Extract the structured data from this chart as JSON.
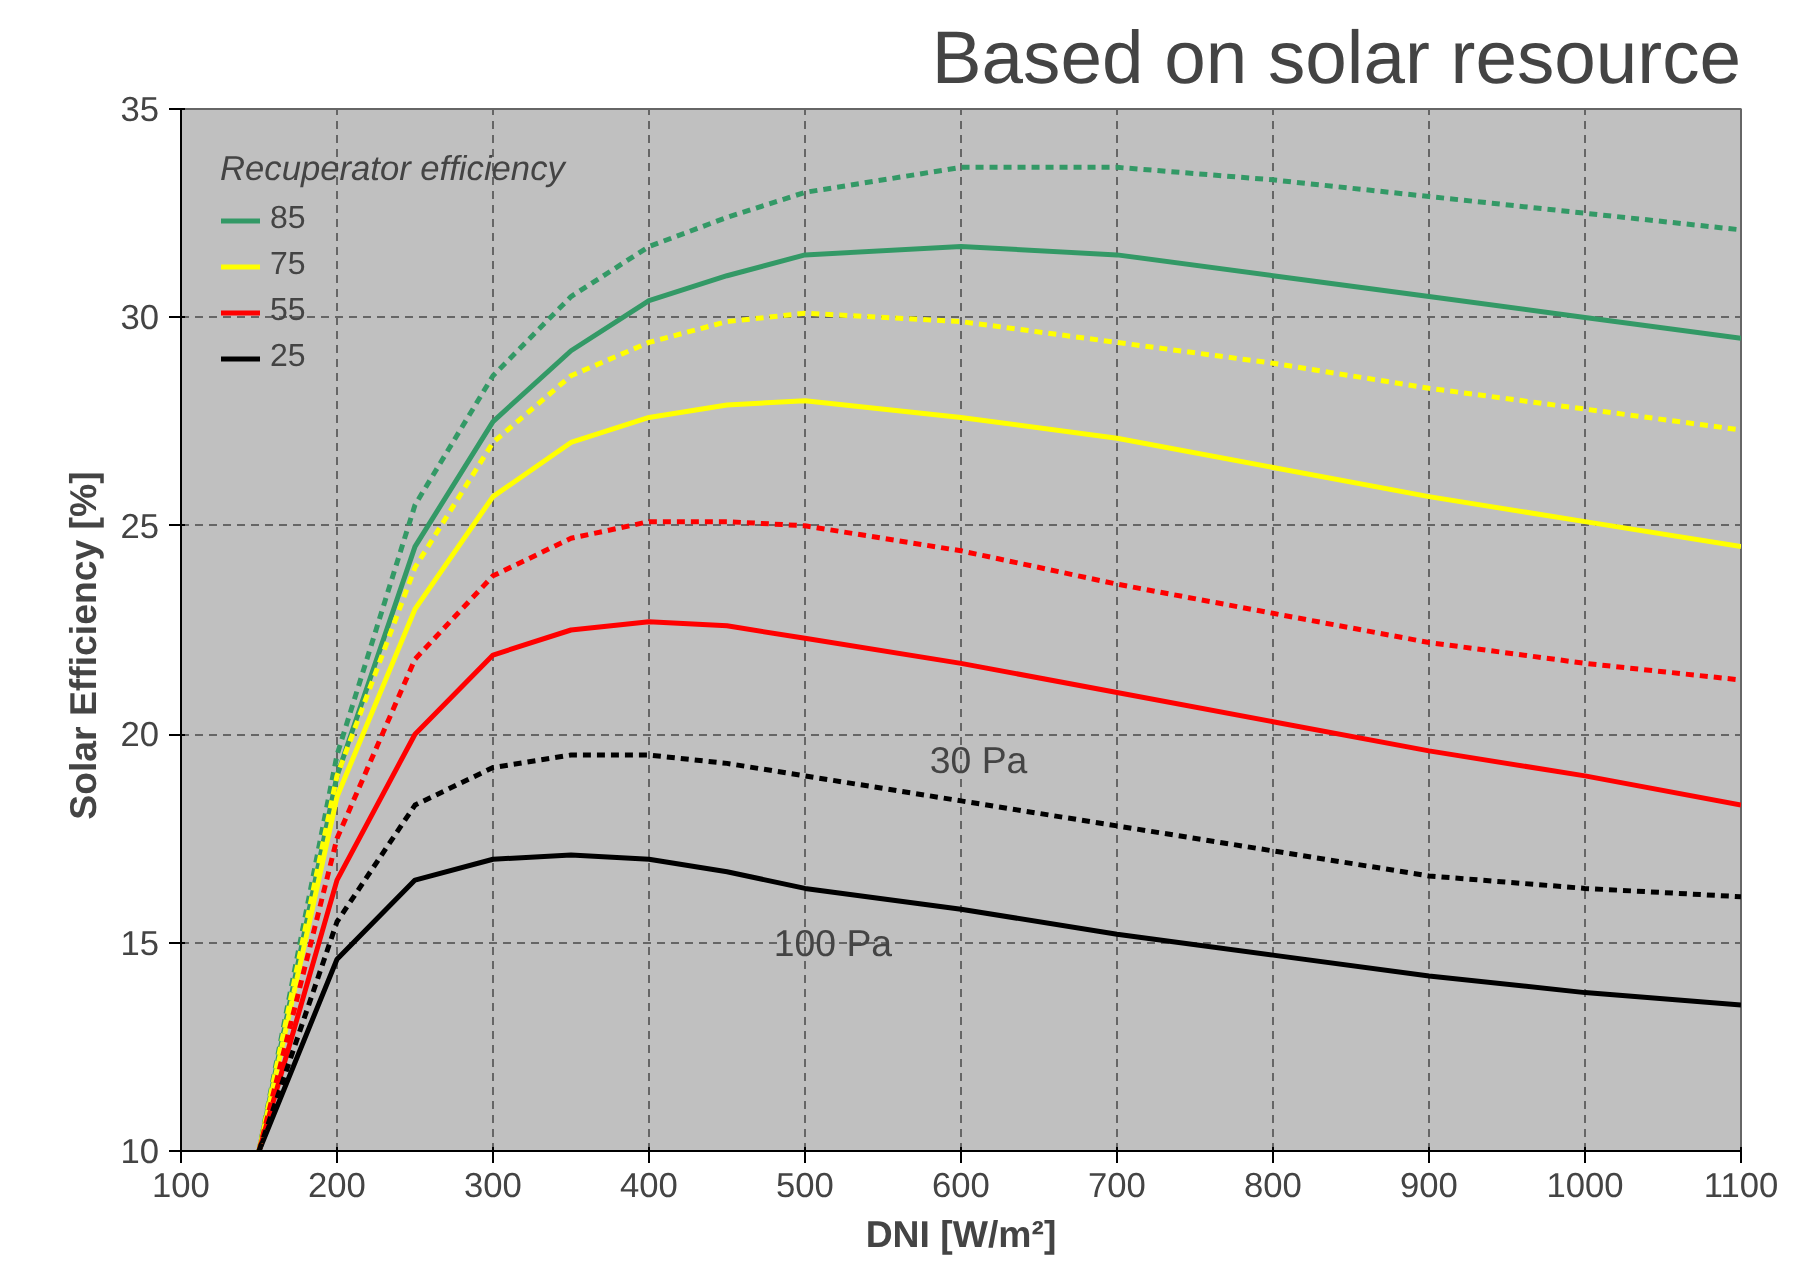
{
  "chart_data": {
    "type": "line",
    "title": "Based on solar resource",
    "legend_title": "Recuperator efficiency",
    "xlabel": "DNI [W/m²]",
    "ylabel": "Solar Efficiency    [%]",
    "x": [
      150,
      200,
      250,
      300,
      350,
      400,
      450,
      500,
      600,
      700,
      800,
      900,
      1000,
      1100
    ],
    "series": [
      {
        "name": "85",
        "color": "#339966",
        "line_style": "solid",
        "values": [
          10,
          19,
          24.5,
          27.5,
          29.2,
          30.4,
          31.0,
          31.5,
          31.7,
          31.5,
          31.0,
          30.5,
          30.0,
          29.5
        ]
      },
      {
        "name": "75",
        "color": "#ffff00",
        "line_style": "solid",
        "values": [
          10,
          18.5,
          23,
          25.7,
          27,
          27.6,
          27.9,
          28.0,
          27.6,
          27.1,
          26.4,
          25.7,
          25.1,
          24.5
        ]
      },
      {
        "name": "55",
        "color": "#ff0000",
        "line_style": "solid",
        "values": [
          10,
          16.5,
          20,
          21.9,
          22.5,
          22.7,
          22.6,
          22.3,
          21.7,
          21.0,
          20.3,
          19.6,
          19.0,
          18.3
        ]
      },
      {
        "name": "25",
        "color": "#000000",
        "line_style": "solid",
        "values": [
          10,
          14.6,
          16.5,
          17.0,
          17.1,
          17.0,
          16.7,
          16.3,
          15.8,
          15.2,
          14.7,
          14.2,
          13.8,
          13.5
        ]
      },
      {
        "color": "#339966",
        "line_style": "dashed",
        "values": [
          10,
          19.5,
          25.5,
          28.6,
          30.5,
          31.7,
          32.4,
          33.0,
          33.6,
          33.6,
          33.3,
          32.9,
          32.5,
          32.1
        ]
      },
      {
        "color": "#ffff00",
        "line_style": "dashed",
        "values": [
          10,
          19,
          24,
          27,
          28.6,
          29.4,
          29.9,
          30.1,
          29.9,
          29.4,
          28.9,
          28.3,
          27.8,
          27.3
        ]
      },
      {
        "color": "#ff0000",
        "line_style": "dashed",
        "values": [
          10,
          17.5,
          21.8,
          23.8,
          24.7,
          25.1,
          25.1,
          25.0,
          24.4,
          23.6,
          22.9,
          22.2,
          21.7,
          21.3
        ]
      },
      {
        "color": "#000000",
        "line_style": "dashed",
        "values": [
          10,
          15.5,
          18.3,
          19.2,
          19.5,
          19.5,
          19.3,
          19.0,
          18.4,
          17.8,
          17.2,
          16.6,
          16.3,
          16.1
        ]
      }
    ],
    "annotations": [
      {
        "text": "30 Pa",
        "x": 580,
        "y": 18.5
      },
      {
        "text": "100 Pa",
        "x": 480,
        "y": 16.4
      }
    ],
    "xlim": [
      100,
      1100
    ],
    "ylim": [
      10,
      35
    ],
    "xticks": [
      100,
      200,
      300,
      400,
      500,
      600,
      700,
      800,
      900,
      1000,
      1100
    ],
    "yticks": [
      10,
      15,
      20,
      25,
      30,
      35
    ],
    "grid": true,
    "legend": "top left"
  }
}
